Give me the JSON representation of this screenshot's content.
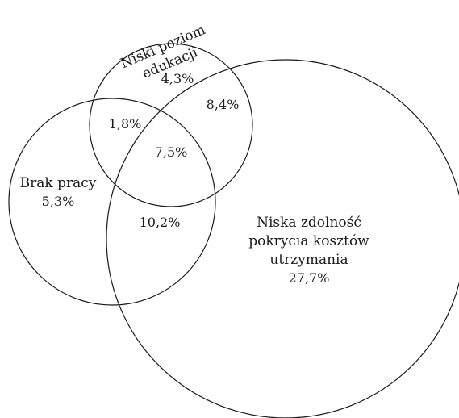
{
  "sets": {
    "education": {
      "name_line1": "Niski poziom",
      "name_line2": "edukacji",
      "only_value": "4,3%"
    },
    "work": {
      "name": "Brak pracy",
      "only_value": "5,3%"
    },
    "costs": {
      "name_line1": "Niska zdolność",
      "name_line2": "pokrycia kosztów",
      "name_line3": "utrzymania",
      "only_value": "27,7%"
    }
  },
  "intersections": {
    "education_work": "1,8%",
    "education_costs": "8,4%",
    "work_costs": "10,2%",
    "all_three": "7,5%"
  }
}
